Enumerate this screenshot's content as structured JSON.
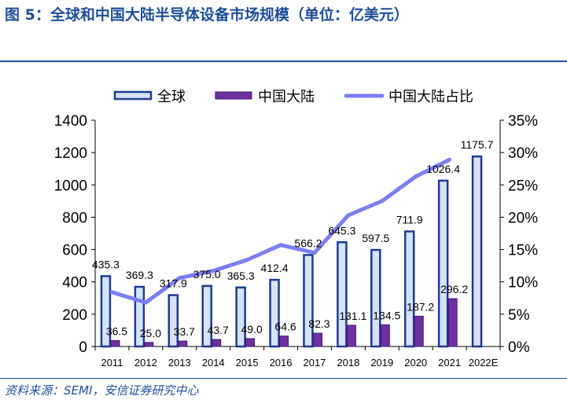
{
  "header": {
    "title": "图 5：全球和中国大陆半导体设备市场规模（单位：亿美元）"
  },
  "footer": {
    "source": "资料来源：SEMI，安信证券研究中心"
  },
  "colors": {
    "title": "#1f4e99",
    "global_fill": "#d6e3f7",
    "global_stroke": "#1f3a93",
    "china_fill": "#7030a0",
    "china_stroke": "#3a1470",
    "share_line": "#7b7ff0",
    "axis": "#000000"
  },
  "chart_data": {
    "type": "bar",
    "categories": [
      "2011",
      "2012",
      "2013",
      "2014",
      "2015",
      "2016",
      "2017",
      "2018",
      "2019",
      "2020",
      "2021",
      "2022E"
    ],
    "series": [
      {
        "name": "全球",
        "type": "bar",
        "axis": "left",
        "values": [
          435.3,
          369.3,
          317.9,
          375.0,
          365.3,
          412.4,
          566.2,
          645.3,
          597.5,
          711.9,
          1026.4,
          1175.7
        ],
        "labels": [
          "435.3",
          "369.3",
          "317.9",
          "375.0",
          "365.3",
          "412.4",
          "566.2",
          "645.3",
          "597.5",
          "711.9",
          "1026.4",
          "1175.7"
        ]
      },
      {
        "name": "中国大陆",
        "type": "bar",
        "axis": "left",
        "values": [
          36.5,
          25.0,
          33.7,
          43.7,
          49.0,
          64.6,
          82.3,
          131.1,
          134.5,
          187.2,
          296.2,
          null
        ],
        "labels": [
          "36.5",
          "25.0",
          "33.7",
          "43.7",
          "49.0",
          "64.6",
          "82.3",
          "131.1",
          "134.5",
          "187.2",
          "296.2",
          ""
        ]
      },
      {
        "name": "中国大陆占比",
        "type": "line",
        "axis": "right",
        "values": [
          8.4,
          6.8,
          10.6,
          11.7,
          13.4,
          15.7,
          14.5,
          20.3,
          22.5,
          26.3,
          28.9,
          null
        ]
      }
    ],
    "y_left": {
      "min": 0,
      "max": 1400,
      "ticks": [
        "0",
        "200",
        "400",
        "600",
        "800",
        "1000",
        "1200",
        "1400"
      ]
    },
    "y_right": {
      "min": 0,
      "max": 35,
      "ticks": [
        "0%",
        "5%",
        "10%",
        "15%",
        "20%",
        "25%",
        "30%",
        "35%"
      ]
    },
    "legend": {
      "position": "top",
      "entries": [
        "全球",
        "中国大陆",
        "中国大陆占比"
      ]
    }
  }
}
